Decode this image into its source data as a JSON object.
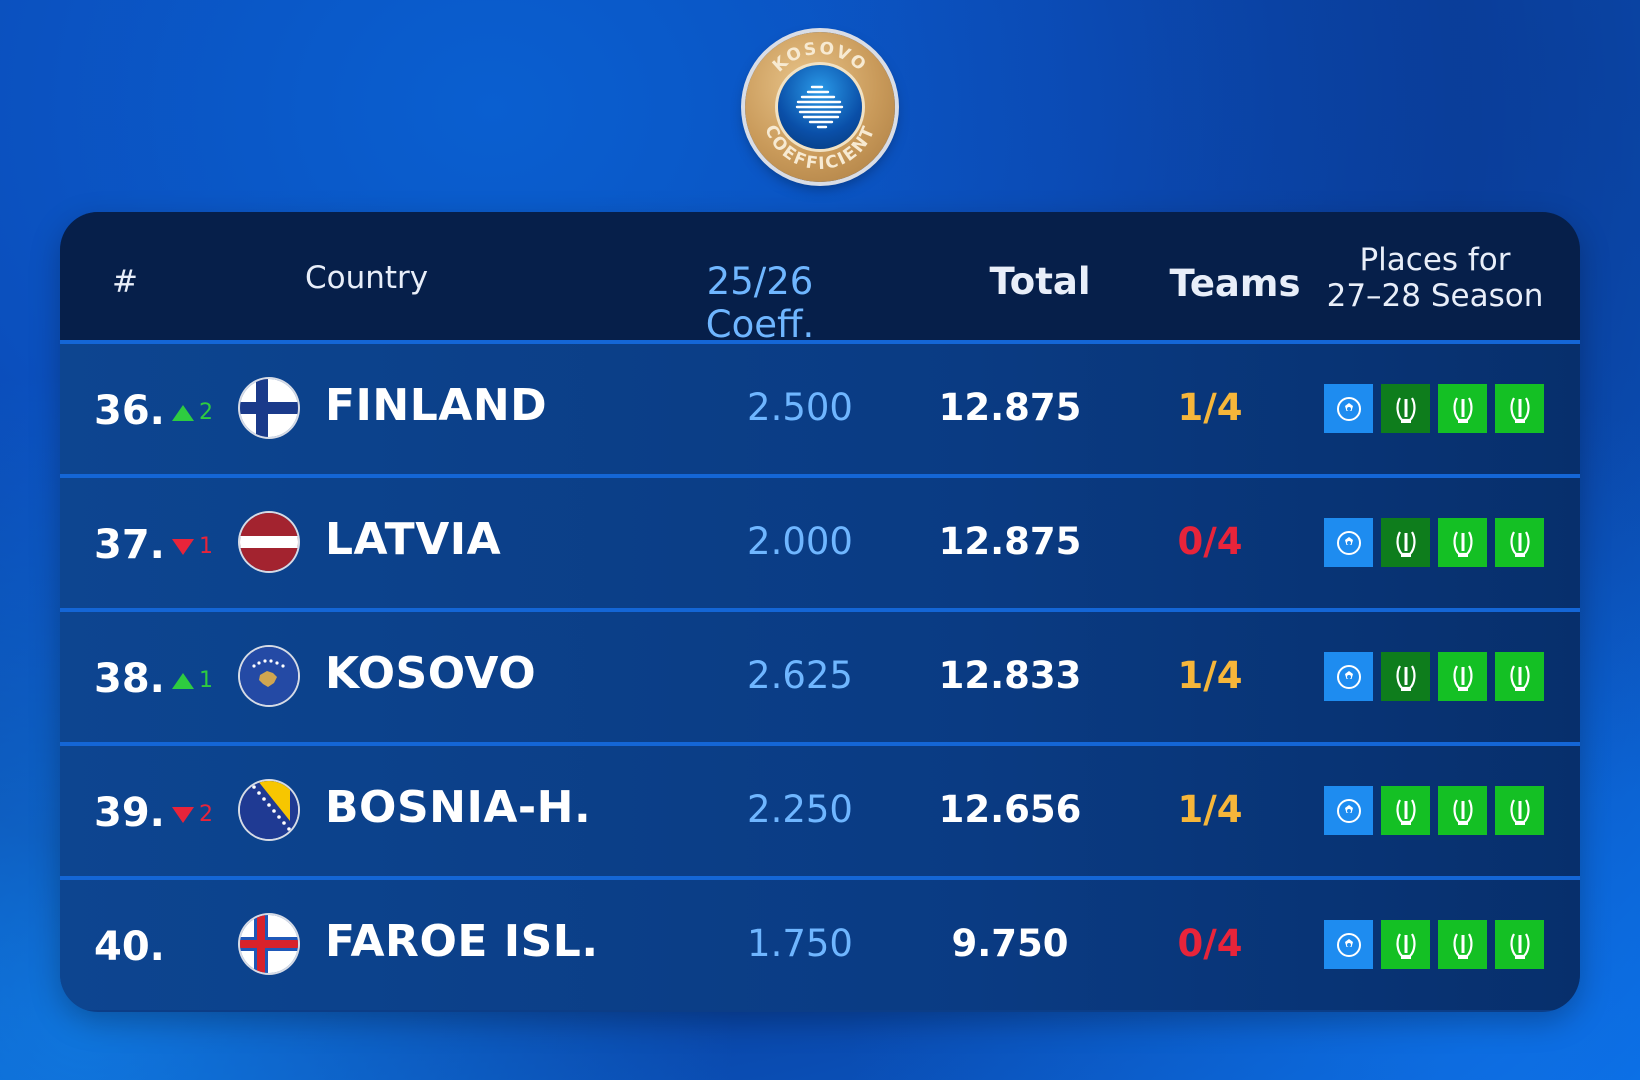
{
  "logo": {
    "text_top": "KOSOVO",
    "text_bottom": "COEFFICIENT"
  },
  "table": {
    "headers": {
      "rank": "#",
      "country": "Country",
      "coeff": "25/26 Coeff.",
      "total": "Total",
      "teams": "Teams",
      "places_line1": "Places for",
      "places_line2": "27–28 Season"
    },
    "rows": [
      {
        "rank": "36.",
        "move_dir": "up",
        "move_n": "2",
        "flag": "finland-flag-icon",
        "country": "FINLAND",
        "coeff": "2.500",
        "total": "12.875",
        "teams": "1/4",
        "teams_color": "orange"
      },
      {
        "rank": "37.",
        "move_dir": "down",
        "move_n": "1",
        "flag": "latvia-flag-icon",
        "country": "LATVIA",
        "coeff": "2.000",
        "total": "12.875",
        "teams": "0/4",
        "teams_color": "red"
      },
      {
        "rank": "38.",
        "move_dir": "up",
        "move_n": "1",
        "flag": "kosovo-flag-icon",
        "country": "KOSOVO",
        "coeff": "2.625",
        "total": "12.833",
        "teams": "1/4",
        "teams_color": "orange"
      },
      {
        "rank": "39.",
        "move_dir": "down",
        "move_n": "2",
        "flag": "bosnia-flag-icon",
        "country": "BOSNIA-H.",
        "coeff": "2.250",
        "total": "12.656",
        "teams": "1/4",
        "teams_color": "orange"
      },
      {
        "rank": "40.",
        "move_dir": "",
        "move_n": "",
        "flag": "faroe-flag-icon",
        "country": "FAROE ISL.",
        "coeff": "1.750",
        "total": "9.750",
        "teams": "0/4",
        "teams_color": "red"
      }
    ],
    "places_icons": [
      [
        "champions-league-icon",
        "europa-league-icon",
        "conference-league-icon",
        "conference-league-icon"
      ],
      [
        "champions-league-icon",
        "europa-league-icon",
        "conference-league-icon",
        "conference-league-icon"
      ],
      [
        "champions-league-icon",
        "europa-league-icon",
        "conference-league-icon",
        "conference-league-icon"
      ],
      [
        "champions-league-icon",
        "conference-league-icon",
        "conference-league-icon",
        "conference-league-icon"
      ],
      [
        "champions-league-icon",
        "conference-league-icon",
        "conference-league-icon",
        "conference-league-icon"
      ]
    ],
    "colors": {
      "ucl_blue": "#1e8cf0",
      "uel_green": "#0e7d1c",
      "uecl_green": "#14c024",
      "up": "#2ecc40",
      "down": "#e8243a",
      "orange": "#f6b63a"
    }
  }
}
